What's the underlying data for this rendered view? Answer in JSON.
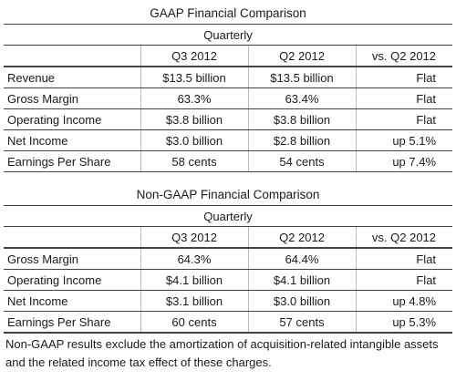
{
  "gaap": {
    "title": "GAAP Financial Comparison",
    "quarterly_label": "Quarterly",
    "columns": [
      "Q3 2012",
      "Q2 2012",
      "vs. Q2 2012"
    ],
    "rows": [
      {
        "label": "Revenue",
        "q3": "$13.5 billion",
        "q2": "$13.5 billion",
        "vs": "Flat"
      },
      {
        "label": "Gross Margin",
        "q3": "63.3%",
        "q2": "63.4%",
        "vs": "Flat"
      },
      {
        "label": "Operating Income",
        "q3": "$3.8 billion",
        "q2": "$3.8 billion",
        "vs": "Flat"
      },
      {
        "label": "Net Income",
        "q3": "$3.0 billion",
        "q2": "$2.8 billion",
        "vs": "up 5.1%"
      },
      {
        "label": "Earnings Per Share",
        "q3": "58 cents",
        "q2": "54 cents",
        "vs": "up 7.4%"
      }
    ]
  },
  "non_gaap": {
    "title": "Non-GAAP Financial Comparison",
    "quarterly_label": "Quarterly",
    "columns": [
      "Q3 2012",
      "Q2 2012",
      "vs. Q2 2012"
    ],
    "rows": [
      {
        "label": "Gross Margin",
        "q3": "64.3%",
        "q2": "64.4%",
        "vs": "Flat"
      },
      {
        "label": "Operating Income",
        "q3": "$4.1 billion",
        "q2": "$4.1 billion",
        "vs": "Flat"
      },
      {
        "label": "Net Income",
        "q3": "$3.1 billion",
        "q2": "$3.0 billion",
        "vs": "up 4.8%"
      },
      {
        "label": "Earnings Per Share",
        "q3": "60 cents",
        "q2": "57 cents",
        "vs": "up 5.3%"
      }
    ]
  },
  "footnote": "Non-GAAP results exclude the amortization of acquisition-related intangible assets and the related income tax effect of these charges."
}
